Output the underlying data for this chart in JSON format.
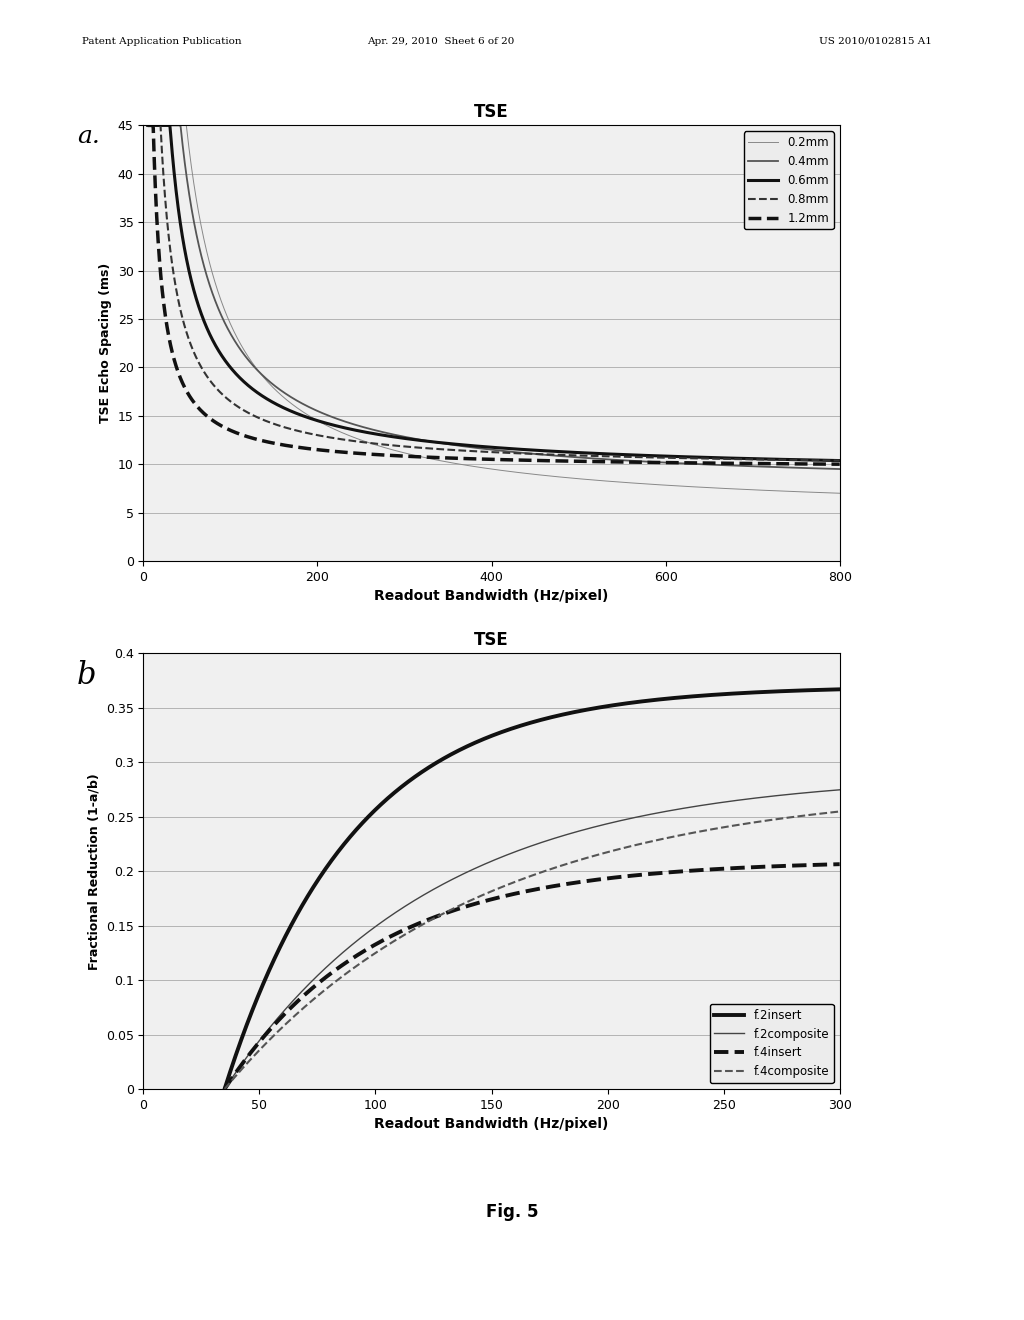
{
  "background_color": "#ffffff",
  "plot_bg": "#f0f0f0",
  "header_text_left": "Patent Application Publication",
  "header_text_mid": "Apr. 29, 2010  Sheet 6 of 20",
  "header_text_right": "US 2010/0102815 A1",
  "fig_label": "Fig. 5",
  "plot_a": {
    "title": "TSE",
    "xlabel": "Readout Bandwidth (Hz/pixel)",
    "ylabel": "TSE Echo Spacing (ms)",
    "xlim": [
      0,
      800
    ],
    "ylim": [
      0,
      45
    ],
    "yticks": [
      0,
      5,
      10,
      15,
      20,
      25,
      30,
      35,
      40,
      45
    ],
    "xticks": [
      0,
      200,
      400,
      600,
      800
    ],
    "label_a": "a",
    "curves": [
      {
        "label": "0.2mm",
        "lw": 0.7,
        "ls": "solid",
        "color": "#888888",
        "A": 2000,
        "B": 4.5
      },
      {
        "label": "0.4mm",
        "lw": 1.3,
        "ls": "solid",
        "color": "#555555",
        "A": 1600,
        "B": 7.5
      },
      {
        "label": "0.6mm",
        "lw": 2.2,
        "ls": "solid",
        "color": "#111111",
        "A": 1100,
        "B": 9.0
      },
      {
        "label": "0.8mm",
        "lw": 1.5,
        "ls": "dashed",
        "color": "#333333",
        "A": 700,
        "B": 9.5
      },
      {
        "label": "1.2mm",
        "lw": 2.5,
        "ls": "dashed",
        "color": "#111111",
        "A": 400,
        "B": 9.5
      }
    ]
  },
  "plot_b": {
    "title": "TSE",
    "xlabel": "Readout Bandwidth (Hz/pixel)",
    "ylabel": "Fractional Reduction (1-a/b)",
    "xlim": [
      0,
      300
    ],
    "ylim": [
      0,
      0.4
    ],
    "yticks": [
      0,
      0.05,
      0.1,
      0.15,
      0.2,
      0.25,
      0.3,
      0.35,
      0.4
    ],
    "xticks": [
      0,
      50,
      100,
      150,
      200,
      250,
      300
    ],
    "label_b": "b",
    "curves": [
      {
        "label": "f.2insert",
        "lw": 2.8,
        "ls": "solid",
        "color": "#111111",
        "plateau": 0.37,
        "tau": 55
      },
      {
        "label": "f.2composite",
        "lw": 1.0,
        "ls": "solid",
        "color": "#444444",
        "plateau": 0.29,
        "tau": 90
      },
      {
        "label": "f.4insert",
        "lw": 2.8,
        "ls": "dashed",
        "color": "#111111",
        "plateau": 0.21,
        "tau": 65
      },
      {
        "label": "f.4composite",
        "lw": 1.5,
        "ls": "dashed",
        "color": "#555555",
        "plateau": 0.28,
        "tau": 110
      }
    ]
  }
}
